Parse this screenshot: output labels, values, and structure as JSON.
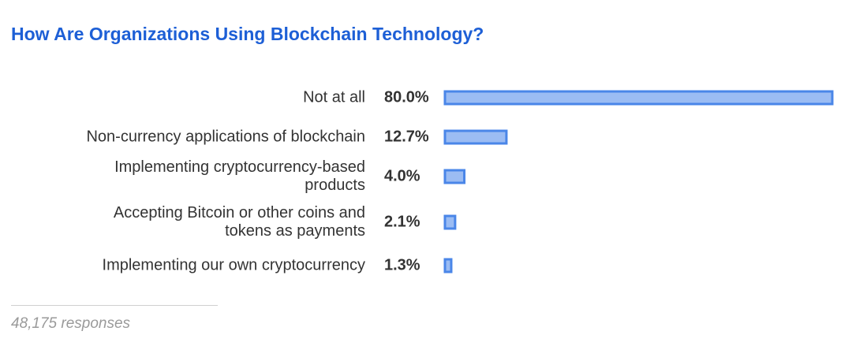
{
  "colors": {
    "title": "#1d5fd6",
    "bar_fill": "#9bbcf3",
    "bar_stroke": "#4a86e8",
    "text": "#333333"
  },
  "chart_data": {
    "type": "bar",
    "orientation": "horizontal",
    "title": "How Are Organizations Using Blockchain Technology?",
    "categories": [
      [
        "Not at all"
      ],
      [
        "Non-currency applications of blockchain"
      ],
      [
        "Implementing cryptocurrency-based",
        "products"
      ],
      [
        "Accepting Bitcoin or other coins and",
        "tokens as payments"
      ],
      [
        "Implementing our own cryptocurrency"
      ]
    ],
    "values": [
      80.0,
      12.7,
      4.0,
      2.1,
      1.3
    ],
    "value_labels": [
      "80.0%",
      "12.7%",
      "4.0%",
      "2.1%",
      "1.3%"
    ],
    "xlim": [
      0,
      80
    ],
    "grid": false
  },
  "footer": {
    "responses": "48,175 responses"
  }
}
